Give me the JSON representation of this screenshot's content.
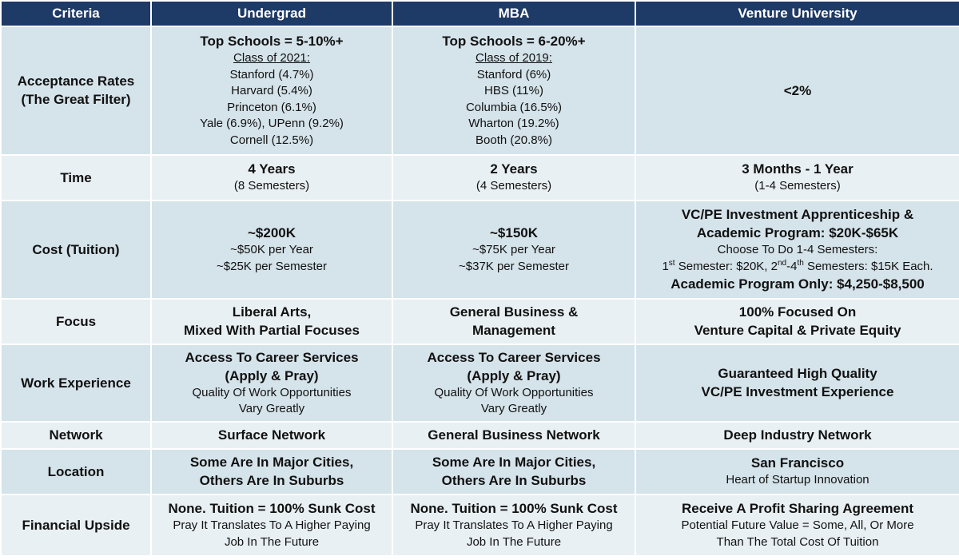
{
  "header": {
    "criteria": "Criteria",
    "undergrad": "Undergrad",
    "mba": "MBA",
    "venture": "Venture University"
  },
  "rows": {
    "acceptance": {
      "label_line1": "Acceptance Rates",
      "label_line2": "(The Great Filter)",
      "undergrad": {
        "headline": "Top Schools = 5-10%+",
        "class_label": "Class of 2021:",
        "items": [
          "Stanford (4.7%)",
          "Harvard (5.4%)",
          "Princeton (6.1%)",
          "Yale (6.9%), UPenn (9.2%)",
          "Cornell (12.5%)"
        ]
      },
      "mba": {
        "headline": "Top Schools = 6-20%+",
        "class_label": "Class of 2019:",
        "items": [
          "Stanford (6%)",
          "HBS (11%)",
          "Columbia (16.5%)",
          "Wharton (19.2%)",
          "Booth (20.8%)"
        ]
      },
      "venture": "<2%"
    },
    "time": {
      "label": "Time",
      "undergrad": {
        "main": "4 Years",
        "sub": "(8 Semesters)"
      },
      "mba": {
        "main": "2 Years",
        "sub": "(4 Semesters)"
      },
      "venture": {
        "main": "3 Months - 1 Year",
        "sub": "(1-4 Semesters)"
      }
    },
    "cost": {
      "label": "Cost (Tuition)",
      "undergrad": {
        "main": "~$200K",
        "line1": "~$50K per Year",
        "line2": "~$25K per Semester"
      },
      "mba": {
        "main": "~$150K",
        "line1": "~$75K per Year",
        "line2": "~$37K per Semester"
      },
      "venture": {
        "main_line1": "VC/PE Investment Apprenticeship &",
        "main_line2": "Academic Program: $20K-$65K",
        "choose": "Choose To Do 1-4 Semesters:",
        "semester_a": "1",
        "sup_a": "st",
        "semester_a_text": " Semester: $20K, 2",
        "sup_b": "nd",
        "semester_b_text": "-4",
        "sup_c": "th",
        "semester_c_text": " Semesters: $15K Each.",
        "academic_only": "Academic Program Only: $4,250-$8,500"
      }
    },
    "focus": {
      "label": "Focus",
      "undergrad": {
        "line1": "Liberal Arts,",
        "line2": "Mixed With Partial Focuses"
      },
      "mba": {
        "line1": "General Business &",
        "line2": "Management"
      },
      "venture": {
        "line1": "100% Focused On",
        "line2": "Venture Capital & Private Equity"
      }
    },
    "work": {
      "label": "Work Experience",
      "undergrad": {
        "line1": "Access To Career Services",
        "line2": "(Apply & Pray)",
        "sub1": "Quality Of Work Opportunities",
        "sub2": "Vary Greatly"
      },
      "mba": {
        "line1": "Access To Career Services",
        "line2": "(Apply & Pray)",
        "sub1": "Quality Of Work Opportunities",
        "sub2": "Vary Greatly"
      },
      "venture": {
        "line1": "Guaranteed High Quality",
        "line2": "VC/PE Investment Experience"
      }
    },
    "network": {
      "label": "Network",
      "undergrad": "Surface Network",
      "mba": "General Business Network",
      "venture": "Deep Industry Network"
    },
    "location": {
      "label": "Location",
      "undergrad": {
        "line1": "Some Are In Major Cities,",
        "line2": "Others Are In Suburbs"
      },
      "mba": {
        "line1": "Some Are In Major Cities,",
        "line2": "Others Are In Suburbs"
      },
      "venture": {
        "main": "San Francisco",
        "sub": "Heart of Startup Innovation"
      }
    },
    "financial": {
      "label": "Financial Upside",
      "undergrad": {
        "main": "None. Tuition = 100% Sunk Cost",
        "sub1": "Pray It Translates To A Higher Paying",
        "sub2": "Job In The Future"
      },
      "mba": {
        "main": "None. Tuition = 100% Sunk Cost",
        "sub1": "Pray It Translates To A Higher Paying",
        "sub2": "Job In The Future"
      },
      "venture": {
        "main": "Receive A Profit Sharing Agreement",
        "sub1": "Potential Future Value = Some, All, Or More",
        "sub2": "Than The Total Cost Of Tuition"
      }
    }
  },
  "colors": {
    "header_bg": "#1e3a66",
    "row_dark": "#d5e3ea",
    "row_light": "#e9f0f3"
  }
}
